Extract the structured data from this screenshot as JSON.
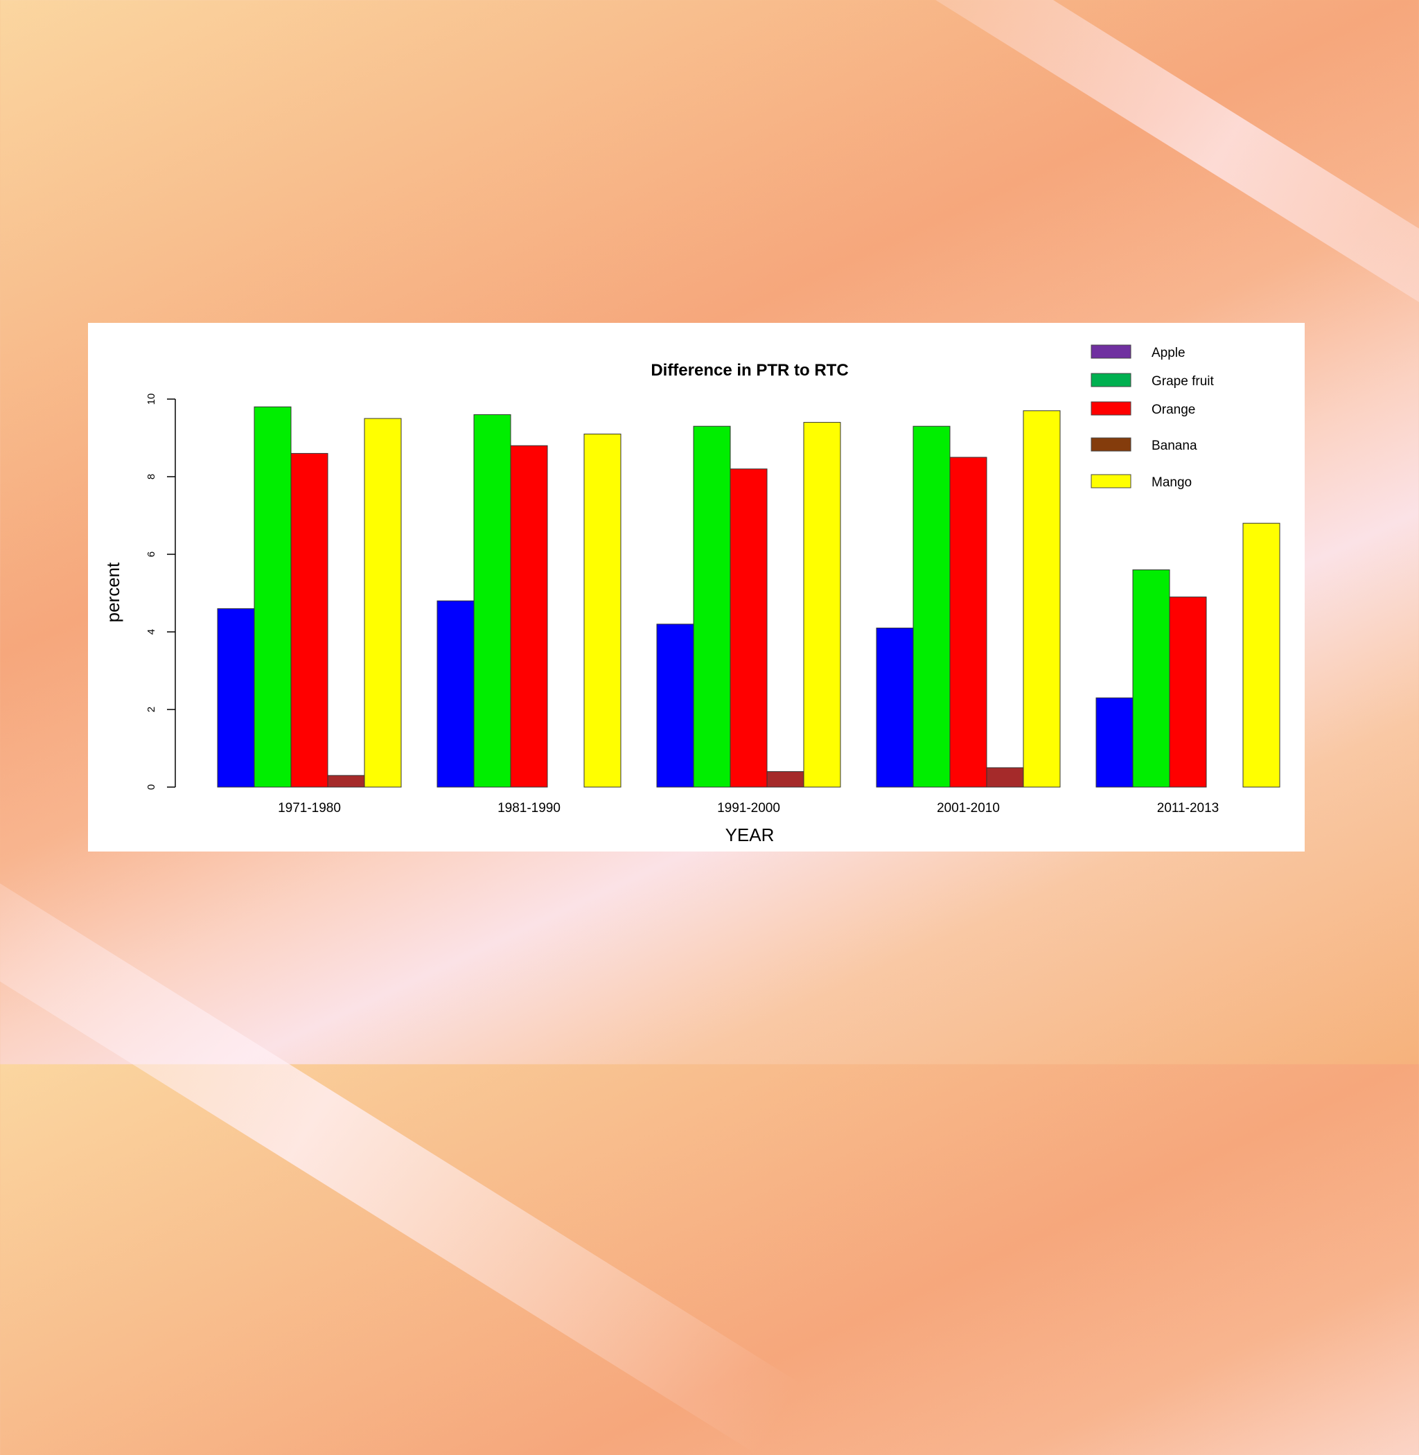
{
  "chart_data": {
    "type": "bar",
    "title": "Difference in PTR to RTC",
    "xlabel": "YEAR",
    "ylabel": "percent",
    "ylim": [
      0,
      10
    ],
    "yticks": [
      "0",
      "2",
      "4",
      "6",
      "8",
      "10"
    ],
    "categories": [
      "1971-1980",
      "1981-1990",
      "1991-2000",
      "2001-2010",
      "2011-2013"
    ],
    "series": [
      {
        "name": "Apple",
        "bar_color": "#0000ff",
        "legend_color": "#7030a0",
        "values": [
          4.6,
          4.8,
          4.2,
          4.1,
          2.3
        ]
      },
      {
        "name": "Grape fruit",
        "bar_color": "#00ee00",
        "legend_color": "#00b050",
        "values": [
          9.8,
          9.6,
          9.3,
          9.3,
          5.6
        ]
      },
      {
        "name": "Orange",
        "bar_color": "#ff0000",
        "legend_color": "#ff0000",
        "values": [
          8.6,
          8.8,
          8.2,
          8.5,
          4.9
        ]
      },
      {
        "name": "Banana",
        "bar_color": "#a52a2a",
        "legend_color": "#843c0c",
        "values": [
          0.3,
          0,
          0.4,
          0.5,
          0
        ]
      },
      {
        "name": "Mango",
        "bar_color": "#ffff00",
        "legend_color": "#ffff00",
        "values": [
          9.5,
          9.1,
          9.4,
          9.7,
          6.8
        ]
      }
    ]
  }
}
